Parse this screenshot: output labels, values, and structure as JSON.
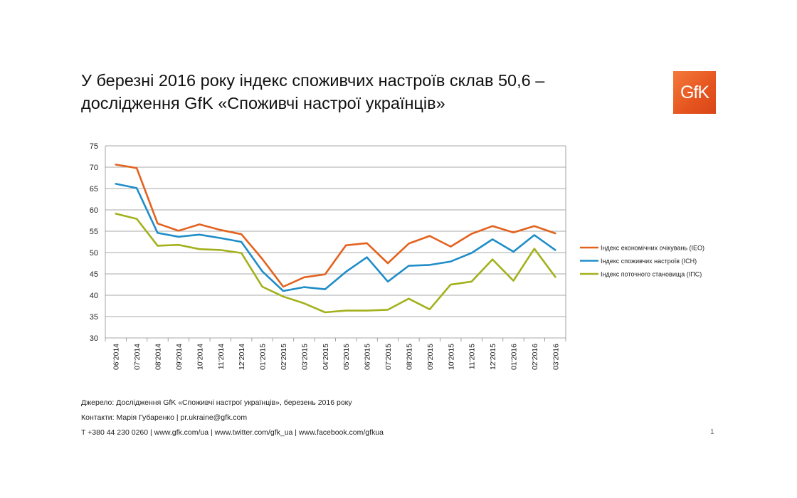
{
  "slide": {
    "title_line1": "У березні 2016 року індекс споживчих настроїв склав 50,6 –",
    "title_line2": "дослідження GfK «Споживчі настрої українців»",
    "logo_text": "GfK",
    "source": "Джерело: Дослідження GfK «Споживчі настрої українців», березень 2016 року",
    "contacts": "Контакти: Марія Губаренко | pr.ukraine@gfk.com",
    "links": "T +380 44 230 0260 | www.gfk.com/ua | www.twitter.com/gfk_ua | www.facebook.com/gfkua",
    "page_number": "1"
  },
  "chart_data": {
    "type": "line",
    "categories": [
      "06'2014",
      "07'2014",
      "08'2014",
      "09'2014",
      "10'2014",
      "11'2014",
      "12'2014",
      "01'2015",
      "02'2015",
      "03'2015",
      "04'2015",
      "05'2015",
      "06'2015",
      "07'2015",
      "08'2015",
      "09'2015",
      "10'2015",
      "11'2015",
      "12'2015",
      "01'2016",
      "02'2016",
      "03'2016"
    ],
    "ylim": [
      30,
      75
    ],
    "yticks": [
      30,
      35,
      40,
      45,
      50,
      55,
      60,
      65,
      70,
      75
    ],
    "grid": true,
    "legend_position": "right",
    "series": [
      {
        "name": "Індекс економічних очікувань (ІЕО)",
        "color": "#e3621e",
        "values": [
          70.6,
          69.8,
          56.8,
          55.1,
          56.6,
          55.3,
          54.3,
          48.5,
          42.0,
          44.2,
          44.9,
          51.7,
          52.2,
          47.5,
          52.1,
          53.9,
          51.4,
          54.4,
          56.2,
          54.7,
          56.2,
          54.5
        ]
      },
      {
        "name": "Індекс споживчих настроїв (ІСН)",
        "color": "#1f8dc8",
        "values": [
          66.1,
          65.1,
          54.6,
          53.7,
          54.2,
          53.4,
          52.5,
          45.6,
          41.0,
          41.9,
          41.4,
          45.5,
          48.9,
          43.2,
          46.9,
          47.1,
          47.9,
          49.9,
          53.1,
          50.2,
          54.1,
          50.6
        ]
      },
      {
        "name": "Індекс поточного становища (ІПС)",
        "color": "#a3b11c",
        "values": [
          59.1,
          57.9,
          51.6,
          51.8,
          50.8,
          50.6,
          49.9,
          42.0,
          39.7,
          38.1,
          36.0,
          36.4,
          36.4,
          36.6,
          39.2,
          36.7,
          42.5,
          43.2,
          48.4,
          43.4,
          50.9,
          44.3
        ]
      }
    ]
  }
}
